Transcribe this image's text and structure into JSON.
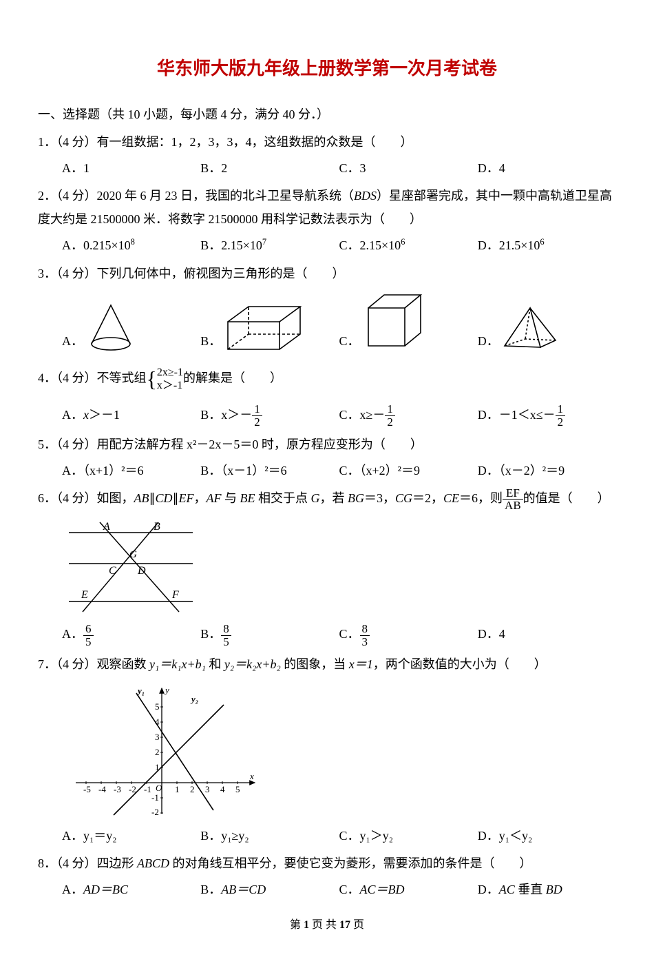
{
  "title": "华东师大版九年级上册数学第一次月考试卷",
  "title_color": "#c00000",
  "section1": "一、选择题（共 10 小题，每小题 4 分，满分 40 分．）",
  "q1": {
    "stem": "1．（4 分）有一组数据：1，2，3，3，4，这组数据的众数是（　　）",
    "A": "A．1",
    "B": "B．2",
    "C": "C．3",
    "D": "D．4"
  },
  "q2": {
    "stem_pre": "2．（4 分）2020 年 6 月 23 日，我国的北斗卫星导航系统（",
    "stem_italic": "BDS",
    "stem_post": "）星座部署完成，其中一颗中高轨道卫星高度大约是 21500000 米．将数字 21500000 用科学记数法表示为（　　）",
    "A_pre": "A．0.215×10",
    "A_sup": "8",
    "B_pre": "B．2.15×10",
    "B_sup": "7",
    "C_pre": "C．2.15×10",
    "C_sup": "6",
    "D_pre": "D．21.5×10",
    "D_sup": "6"
  },
  "q3": {
    "stem": "3．（4 分）下列几何体中，俯视图为三角形的是（　　）",
    "A": "A．",
    "B": "B．",
    "C": "C．",
    "D": "D．",
    "shapes": {
      "stroke": "#000000",
      "stroke_width": 1.6
    }
  },
  "q4": {
    "stem_pre": "4．（4 分）不等式组",
    "line1": "2x≥-1",
    "line2": "x＞-1",
    "stem_post": "的解集是（　　）",
    "A": "A．x＞－1",
    "B_pre": "B．x＞－",
    "B_num": "1",
    "B_den": "2",
    "C_pre": "C．x≥－",
    "C_num": "1",
    "C_den": "2",
    "D_pre": "D．－1＜x≤－",
    "D_num": "1",
    "D_den": "2"
  },
  "q5": {
    "stem": "5．（4 分）用配方法解方程 x²－2x－5＝0 时，原方程应变形为（　　）",
    "A": "A．（x+1）²＝6",
    "B": "B．（x－1）²＝6",
    "C": "C．（x+2）²＝9",
    "D": "D．（x－2）²＝9"
  },
  "q6": {
    "stem_pre": "6．（4 分）如图，",
    "stem_i1": "AB",
    "stem_m1": "∥",
    "stem_i2": "CD",
    "stem_m2": "∥",
    "stem_i3": "EF",
    "stem_m3": "，",
    "stem_i4": "AF",
    "stem_m4": " 与 ",
    "stem_i5": "BE",
    "stem_m5": " 相交于点 ",
    "stem_i6": "G",
    "stem_m6": "，若 ",
    "stem_i7": "BG",
    "stem_m7": "＝3，",
    "stem_i8": "CG",
    "stem_m8": "＝2，",
    "stem_i9": "CE",
    "stem_m9": "＝6，则",
    "frac_num": "EF",
    "frac_den": "AB",
    "stem_post": "的值是（　　）",
    "labels": {
      "A": "A",
      "B": "B",
      "C": "C",
      "D": "D",
      "E": "E",
      "F": "F",
      "G": "G"
    },
    "A_num": "6",
    "A_den": "5",
    "B_num": "8",
    "B_den": "5",
    "C_num": "8",
    "C_den": "3",
    "D": "D．4",
    "A_label": "A．",
    "B_label": "B．",
    "C_label": "C．"
  },
  "q7": {
    "stem_pre": "7．（4 分）观察函数 ",
    "y1": "y₁＝k₁x+b₁",
    "mid": " 和 ",
    "y2": "y₂＝k₂x+b₂",
    "stem_mid": " 的图象，当 ",
    "xeq": "x＝1",
    "stem_post": "，两个函数值的大小为（　　）",
    "graph": {
      "xlim": [
        -5,
        5
      ],
      "ylim": [
        -2,
        5
      ],
      "xticks": [
        -5,
        -4,
        -3,
        -2,
        -1,
        1,
        2,
        3,
        4,
        5
      ],
      "yticks": [
        -1,
        -2,
        1,
        2,
        3,
        4,
        5
      ],
      "xlabel": "x",
      "ylabel_y": "y",
      "ylabel_y1": "y₁",
      "ylabel_y2": "y₂",
      "origin": "O",
      "line1": {
        "slope": -1.5,
        "intercept": 3.5,
        "color": "#000"
      },
      "line2": {
        "slope": 1,
        "intercept": 1,
        "color": "#000"
      }
    },
    "A": "A．y₁＝y₂",
    "B": "B．y₁≥y₂",
    "C": "C．y₁＞y₂",
    "D": "D．y₁＜y₂"
  },
  "q8": {
    "stem_pre": "8．（4 分）四边形 ",
    "stem_i": "ABCD",
    "stem_post": " 的对角线互相平分，要使它变为菱形，需要添加的条件是（　　）",
    "A_pre": "A．",
    "A_i": "AD＝BC",
    "B_pre": "B．",
    "B_i": "AB＝CD",
    "C_pre": "C．",
    "C_i": "AC＝BD",
    "D_pre": "D．",
    "D_i1": "AC",
    "D_mid": " 垂直 ",
    "D_i2": "BD"
  },
  "footer": {
    "pre": "第 ",
    "cur": "1",
    "mid": " 页 共 ",
    "total": "17",
    "post": " 页"
  }
}
